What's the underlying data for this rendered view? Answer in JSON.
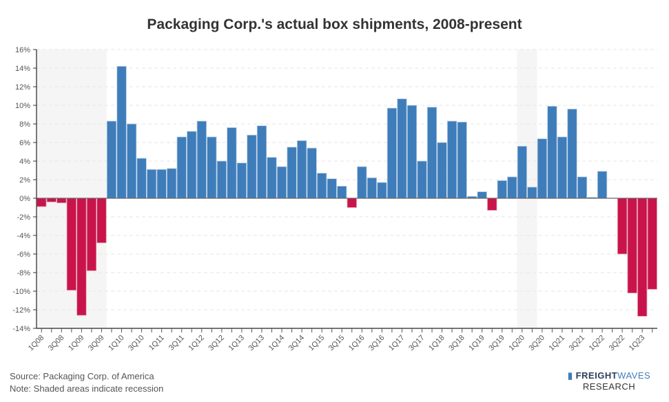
{
  "chart_data": {
    "type": "bar",
    "title": "Packaging Corp.'s actual box shipments, 2008-present",
    "xlabel": "",
    "ylabel": "",
    "ylim": [
      -14,
      16
    ],
    "yticks": [
      16,
      14,
      12,
      10,
      8,
      6,
      4,
      2,
      0,
      -2,
      -4,
      -6,
      -8,
      -10,
      -12,
      -14
    ],
    "ytick_suffix": "%",
    "grid": true,
    "categories": [
      "1Q08",
      "2Q08",
      "3Q08",
      "4Q08",
      "1Q09",
      "2Q09",
      "3Q09",
      "4Q09",
      "1Q10",
      "2Q10",
      "3Q10",
      "4Q10",
      "1Q11",
      "2Q11",
      "3Q11",
      "4Q11",
      "1Q12",
      "2Q12",
      "3Q12",
      "4Q12",
      "1Q13",
      "2Q13",
      "3Q13",
      "4Q13",
      "1Q14",
      "2Q14",
      "3Q14",
      "4Q14",
      "1Q15",
      "2Q15",
      "3Q15",
      "4Q15",
      "1Q16",
      "2Q16",
      "3Q16",
      "4Q16",
      "1Q17",
      "2Q17",
      "3Q17",
      "4Q17",
      "1Q18",
      "2Q18",
      "3Q18",
      "4Q18",
      "1Q19",
      "2Q19",
      "3Q19",
      "4Q19",
      "1Q20",
      "2Q20",
      "3Q20",
      "4Q20",
      "1Q21",
      "2Q21",
      "3Q21",
      "4Q21",
      "1Q22",
      "2Q22",
      "3Q22",
      "4Q22",
      "1Q23",
      "2Q23"
    ],
    "values": [
      -0.9,
      -0.4,
      -0.5,
      -9.9,
      -12.6,
      -7.8,
      -4.8,
      8.3,
      14.2,
      8.0,
      4.3,
      3.1,
      3.1,
      3.2,
      6.6,
      7.2,
      8.3,
      6.6,
      4.0,
      7.6,
      3.8,
      6.8,
      7.8,
      4.4,
      3.4,
      5.5,
      6.2,
      5.4,
      2.7,
      2.1,
      1.3,
      -1.0,
      3.4,
      2.2,
      1.7,
      9.7,
      10.7,
      10.0,
      4.0,
      9.8,
      6.0,
      8.3,
      8.2,
      0.2,
      0.7,
      -1.3,
      1.9,
      2.3,
      5.6,
      1.2,
      6.4,
      9.9,
      6.6,
      9.6,
      2.3,
      0.1,
      2.9,
      0,
      -6.0,
      -10.2,
      -12.7,
      -9.8
    ],
    "recession_shading": [
      [
        "1Q08",
        "3Q09"
      ],
      [
        "1Q20",
        "2Q20"
      ]
    ],
    "colors": {
      "positive": "#3f7dba",
      "negative": "#c8144a",
      "recession": "#f5f5f5"
    }
  },
  "footer": {
    "source": "Source: Packaging Corp. of America",
    "note": "Note: Shaded areas indicate recession"
  },
  "logo": {
    "brand_bold": "FREIGHT",
    "brand_light": "WAVES",
    "sub": "RESEARCH"
  }
}
